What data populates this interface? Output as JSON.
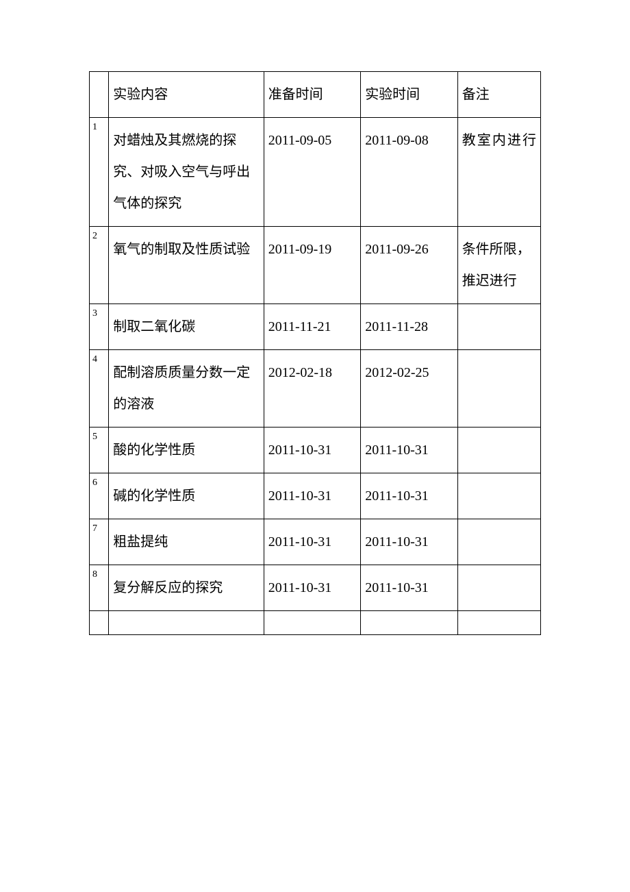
{
  "table": {
    "columns": [
      "",
      "实验内容",
      "准备时间",
      "实验时间",
      "备注"
    ],
    "rows": [
      {
        "idx": "1",
        "content": "对蜡烛及其燃烧的探究、对吸入空气与呼出气体的探究",
        "prep": "2011-09-05",
        "exp": "2011-09-08",
        "note": "教室内进行",
        "note_justify": true
      },
      {
        "idx": "2",
        "content": "氧气的制取及性质试验",
        "prep": "2011-09-19",
        "exp": "2011-09-26",
        "note": "条件所限，推迟进行",
        "note_justify": false
      },
      {
        "idx": "3",
        "content": "制取二氧化碳",
        "prep": "2011-11-21",
        "exp": "2011-11-28",
        "note": "",
        "note_justify": false
      },
      {
        "idx": "4",
        "content": "配制溶质质量分数一定的溶液",
        "prep": "2012-02-18",
        "exp": "2012-02-25",
        "note": "",
        "note_justify": false
      },
      {
        "idx": "5",
        "content": "酸的化学性质",
        "prep": "2011-10-31",
        "exp": "2011-10-31",
        "note": "",
        "note_justify": false
      },
      {
        "idx": "6",
        "content": "碱的化学性质",
        "prep": "2011-10-31",
        "exp": "2011-10-31",
        "note": "",
        "note_justify": false
      },
      {
        "idx": "7",
        "content": "粗盐提纯",
        "prep": "2011-10-31",
        "exp": "2011-10-31",
        "note": "",
        "note_justify": false
      },
      {
        "idx": "8",
        "content": "复分解反应的探究",
        "prep": "2011-10-31",
        "exp": "2011-10-31",
        "note": "",
        "note_justify": false
      }
    ],
    "border_color": "#000000",
    "background_color": "#ffffff",
    "text_color": "#000000",
    "header_fontsize": 20,
    "idx_fontsize": 14,
    "cell_fontsize": 20
  }
}
